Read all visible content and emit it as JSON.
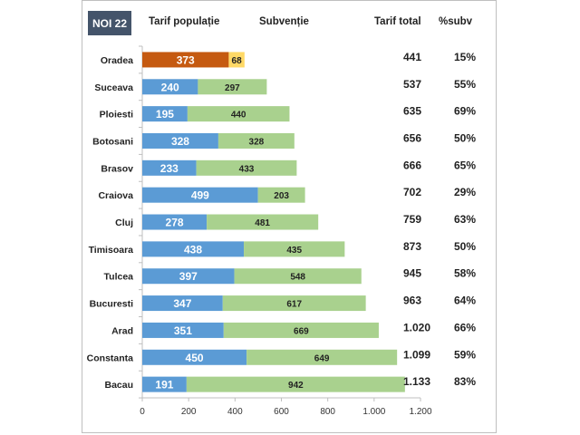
{
  "header": {
    "badge": "NOI 22",
    "col_tarif_populatie": "Tarif populație",
    "col_subventie": "Subvenție",
    "col_tarif_total": "Tarif total",
    "col_pct_subv": "%subv"
  },
  "colors": {
    "tarif_populatie": "#5b9bd5",
    "subventie": "#a9d18e",
    "highlight_tarif": "#c55a11",
    "highlight_subventie": "#ffd966",
    "badge_bg": "#44546a"
  },
  "chart_data": {
    "type": "bar",
    "orientation": "horizontal",
    "stacked": true,
    "title": "NOI 22",
    "categories": [
      "Oradea",
      "Suceava",
      "Ploiesti",
      "Botosani",
      "Brasov",
      "Craiova",
      "Cluj",
      "Timisoara",
      "Tulcea",
      "Bucuresti",
      "Arad",
      "Constanta",
      "Bacau"
    ],
    "series": [
      {
        "name": "Tarif populație",
        "values": [
          373,
          240,
          195,
          328,
          233,
          499,
          278,
          438,
          397,
          347,
          351,
          450,
          191
        ]
      },
      {
        "name": "Subvenție",
        "values": [
          68,
          297,
          440,
          328,
          433,
          203,
          481,
          435,
          548,
          617,
          669,
          649,
          942
        ]
      }
    ],
    "tarif_total_labels": [
      "441",
      "537",
      "635",
      "656",
      "666",
      "702",
      "759",
      "873",
      "945",
      "963",
      "1.020",
      "1.099",
      "1.133"
    ],
    "pct_subv_labels": [
      "15%",
      "55%",
      "69%",
      "50%",
      "65%",
      "29%",
      "63%",
      "50%",
      "58%",
      "64%",
      "66%",
      "59%",
      "83%"
    ],
    "highlighted_category": "Oradea",
    "xlim": [
      0,
      1200
    ],
    "xticks": [
      0,
      200,
      400,
      600,
      800,
      1000,
      1200
    ],
    "xtick_labels": [
      "0",
      "200",
      "400",
      "600",
      "800",
      "1.000",
      "1.200"
    ],
    "xlabel": "",
    "ylabel": "",
    "grid": false,
    "legend": "none"
  }
}
